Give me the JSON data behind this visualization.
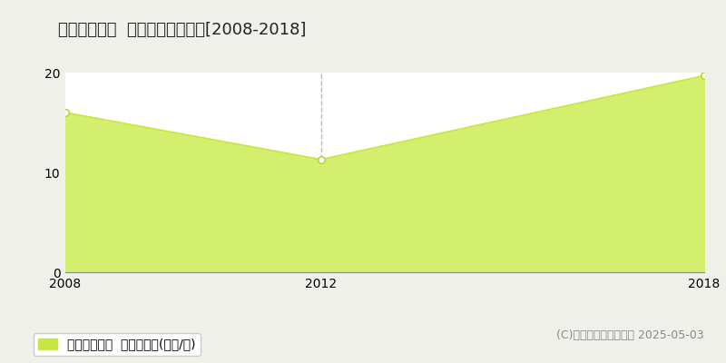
{
  "title": "都城市下川東  収益物件価格推移[2008-2018]",
  "years": [
    2008,
    2012,
    2018
  ],
  "values": [
    16.0,
    11.3,
    19.7
  ],
  "xlim": [
    2008,
    2018
  ],
  "ylim": [
    0,
    20
  ],
  "yticks": [
    0,
    10,
    20
  ],
  "xticks": [
    2008,
    2012,
    2018
  ],
  "line_color": "#c8e641",
  "fill_color": "#d4ee6e",
  "marker_color": "white",
  "marker_edge_color": "#b8d830",
  "dashed_line_x": 2012,
  "dashed_line_color": "#bbbbbb",
  "grid_color": "#cccccc",
  "plot_bg_color": "#ffffff",
  "outer_bg_color": "#f0f0eb",
  "legend_label": "収益物件価格  平均坪単価(万円/坪)",
  "legend_color": "#c8e641",
  "copyright_text": "(C)土地価格ドットコム 2025-05-03",
  "title_fontsize": 13,
  "tick_fontsize": 10,
  "legend_fontsize": 10,
  "copyright_fontsize": 9
}
